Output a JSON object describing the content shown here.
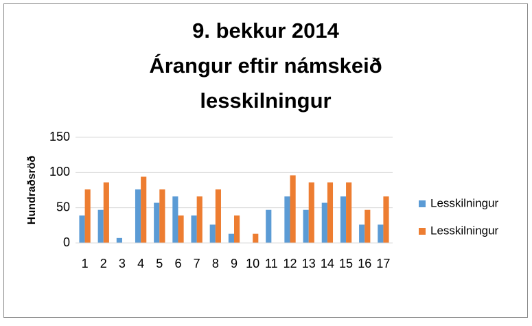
{
  "chart_data": {
    "type": "bar",
    "title": [
      "9. bekkur 2014",
      "Árangur eftir námskeið",
      "lesskilningur"
    ],
    "y_label": "Hundraðsröð",
    "categories": [
      "1",
      "2",
      "3",
      "4",
      "5",
      "6",
      "7",
      "8",
      "9",
      "10",
      "11",
      "12",
      "13",
      "14",
      "15",
      "16",
      "17"
    ],
    "series": [
      {
        "name": "Lesskilningur",
        "color": "#5b9bd5",
        "values": [
          39,
          47,
          7,
          76,
          57,
          66,
          39,
          26,
          13,
          null,
          47,
          66,
          47,
          57,
          66,
          26,
          26
        ]
      },
      {
        "name": "Lesskilningur",
        "color": "#ed7d31",
        "values": [
          76,
          86,
          null,
          94,
          76,
          39,
          66,
          76,
          39,
          13,
          null,
          96,
          86,
          86,
          86,
          47,
          66
        ]
      }
    ],
    "ylim": [
      0,
      150
    ],
    "yticks": [
      0,
      50,
      100,
      150
    ],
    "grid": true,
    "legend": "right"
  }
}
